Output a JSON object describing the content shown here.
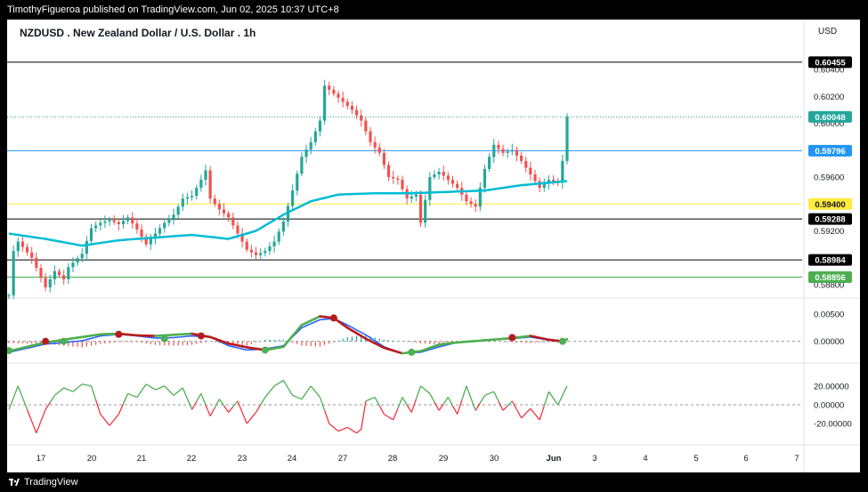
{
  "header": {
    "published": "TimothyFigueroa published on TradingView.com, Jun 02, 2025 10:37 UTC+8"
  },
  "footer": {
    "brand": "TradingView"
  },
  "chart_title": "NZDUSD . New Zealand Dollar / U.S. Dollar . 1h",
  "currency": "USD",
  "colors": {
    "up": "#26a69a",
    "down": "#ef5350",
    "ma": "#00bcd4",
    "macd_fast": "#2962ff",
    "macd_slow_up": "#4caf50",
    "macd_slow_down": "#b71c1c",
    "osc_up": "#4caf50",
    "osc_down": "#f23645",
    "yellow_line": "#ffeb3b"
  },
  "chart_data": [
    {
      "type": "candlestick",
      "title": "NZDUSD . New Zealand Dollar / U.S. Dollar . 1h",
      "x_labels": [
        "17",
        "20",
        "21",
        "22",
        "23",
        "24",
        "27",
        "28",
        "29",
        "30",
        "Jun",
        "3",
        "4",
        "5",
        "6",
        "7"
      ],
      "y_ticks": [
        "0.60400",
        "0.60200",
        "0.60000",
        "0.59600",
        "0.59200",
        "0.58800"
      ],
      "ylim": [
        0.5872,
        0.6056
      ],
      "keypoints": [
        [
          0,
          0.5872
        ],
        [
          1,
          0.5905
        ],
        [
          2,
          0.5912
        ],
        [
          5,
          0.59
        ],
        [
          7,
          0.5885
        ],
        [
          8,
          0.5878
        ],
        [
          10,
          0.589
        ],
        [
          12,
          0.5884
        ],
        [
          13,
          0.5893
        ],
        [
          16,
          0.5903
        ],
        [
          18,
          0.5922
        ],
        [
          20,
          0.5926
        ],
        [
          22,
          0.5928
        ],
        [
          24,
          0.5925
        ],
        [
          26,
          0.593
        ],
        [
          28,
          0.5921
        ],
        [
          30,
          0.591
        ],
        [
          32,
          0.5918
        ],
        [
          34,
          0.5926
        ],
        [
          36,
          0.5932
        ],
        [
          38,
          0.5944
        ],
        [
          40,
          0.5946
        ],
        [
          42,
          0.5958
        ],
        [
          43,
          0.5965
        ],
        [
          44,
          0.5944
        ],
        [
          46,
          0.5936
        ],
        [
          48,
          0.593
        ],
        [
          50,
          0.5918
        ],
        [
          52,
          0.5906
        ],
        [
          54,
          0.5902
        ],
        [
          56,
          0.5905
        ],
        [
          58,
          0.5912
        ],
        [
          60,
          0.5927
        ],
        [
          62,
          0.595
        ],
        [
          64,
          0.5975
        ],
        [
          66,
          0.5986
        ],
        [
          68,
          0.6002
        ],
        [
          69,
          0.6028
        ],
        [
          71,
          0.6022
        ],
        [
          73,
          0.6016
        ],
        [
          75,
          0.601
        ],
        [
          77,
          0.6002
        ],
        [
          79,
          0.5986
        ],
        [
          81,
          0.5978
        ],
        [
          83,
          0.596
        ],
        [
          85,
          0.5958
        ],
        [
          87,
          0.5944
        ],
        [
          89,
          0.5947
        ],
        [
          90,
          0.5926
        ],
        [
          92,
          0.596
        ],
        [
          94,
          0.5964
        ],
        [
          96,
          0.5958
        ],
        [
          98,
          0.5952
        ],
        [
          100,
          0.5942
        ],
        [
          102,
          0.5938
        ],
        [
          104,
          0.5966
        ],
        [
          106,
          0.5984
        ],
        [
          108,
          0.5978
        ],
        [
          110,
          0.598
        ],
        [
          112,
          0.5972
        ],
        [
          114,
          0.5962
        ],
        [
          116,
          0.5952
        ],
        [
          118,
          0.5958
        ],
        [
          120,
          0.5956
        ],
        [
          121,
          0.5972
        ],
        [
          122,
          0.6005
        ]
      ],
      "moving_average": [
        [
          0,
          0.5918
        ],
        [
          8,
          0.5914
        ],
        [
          16,
          0.5909
        ],
        [
          24,
          0.5913
        ],
        [
          32,
          0.5915
        ],
        [
          40,
          0.5917
        ],
        [
          48,
          0.5914
        ],
        [
          54,
          0.592
        ],
        [
          60,
          0.5932
        ],
        [
          66,
          0.5942
        ],
        [
          72,
          0.5947
        ],
        [
          80,
          0.5948
        ],
        [
          88,
          0.5948
        ],
        [
          96,
          0.5949
        ],
        [
          104,
          0.595
        ],
        [
          112,
          0.5954
        ],
        [
          122,
          0.5957
        ]
      ],
      "price_lines": [
        {
          "value": "0.60455",
          "price": 0.60455,
          "style": "solid",
          "color": "#000000"
        },
        {
          "value": "0.60048",
          "price": 0.60048,
          "style": "dotted",
          "color": "#26a69a"
        },
        {
          "value": "0.59796",
          "price": 0.59796,
          "style": "solid",
          "color": "#2196f3"
        },
        {
          "value": "0.59400",
          "price": 0.594,
          "style": "solid",
          "color": "#ffeb3b"
        },
        {
          "value": "0.59288",
          "price": 0.59288,
          "style": "solid",
          "color": "#000000"
        },
        {
          "value": "0.58984",
          "price": 0.58984,
          "style": "solid",
          "color": "#000000"
        },
        {
          "value": "0.58856",
          "price": 0.58856,
          "style": "solid",
          "color": "#4caf50"
        }
      ]
    },
    {
      "type": "line",
      "title": "",
      "y_ticks": [
        "0.00500",
        "0.00000"
      ],
      "ylim": [
        -0.003,
        0.0065
      ],
      "fast": [
        [
          0,
          -0.002
        ],
        [
          8,
          -0.0005
        ],
        [
          12,
          -0.0002
        ],
        [
          16,
          0.0001
        ],
        [
          20,
          0.001
        ],
        [
          24,
          0.0013
        ],
        [
          28,
          0.001
        ],
        [
          32,
          0.0006
        ],
        [
          36,
          0.0007
        ],
        [
          40,
          0.001
        ],
        [
          44,
          0.0008
        ],
        [
          48,
          -0.0008
        ],
        [
          52,
          -0.0016
        ],
        [
          56,
          -0.0014
        ],
        [
          60,
          -0.0008
        ],
        [
          64,
          0.0025
        ],
        [
          68,
          0.004
        ],
        [
          71,
          0.0042
        ],
        [
          74,
          0.003
        ],
        [
          78,
          0.0012
        ],
        [
          82,
          -0.001
        ],
        [
          86,
          -0.0022
        ],
        [
          90,
          -0.002
        ],
        [
          94,
          -0.001
        ],
        [
          98,
          -0.0002
        ],
        [
          104,
          0.0002
        ],
        [
          110,
          0.0005
        ],
        [
          114,
          0.0008
        ],
        [
          118,
          0.0002
        ],
        [
          121,
          -0.0001
        ],
        [
          122,
          0.0003
        ]
      ],
      "slow": [
        [
          0,
          -0.0018
        ],
        [
          8,
          -0.0002
        ],
        [
          12,
          0.0003
        ],
        [
          16,
          0.0008
        ],
        [
          20,
          0.0013
        ],
        [
          24,
          0.0014
        ],
        [
          28,
          0.0011
        ],
        [
          32,
          0.001
        ],
        [
          36,
          0.0012
        ],
        [
          40,
          0.0014
        ],
        [
          44,
          0.0008
        ],
        [
          48,
          -0.0004
        ],
        [
          52,
          -0.0011
        ],
        [
          56,
          -0.0016
        ],
        [
          60,
          -0.001
        ],
        [
          64,
          0.003
        ],
        [
          68,
          0.0046
        ],
        [
          71,
          0.0043
        ],
        [
          74,
          0.0025
        ],
        [
          78,
          0.0005
        ],
        [
          82,
          -0.0012
        ],
        [
          86,
          -0.0022
        ],
        [
          90,
          -0.0018
        ],
        [
          94,
          -0.0006
        ],
        [
          98,
          -0.0002
        ],
        [
          104,
          0.0002
        ],
        [
          110,
          0.0006
        ],
        [
          114,
          0.001
        ],
        [
          118,
          0.0003
        ],
        [
          121,
          0.0
        ],
        [
          122,
          0.0004
        ]
      ],
      "crosses": [
        [
          0,
          -0.0017,
          "up"
        ],
        [
          8,
          0.0,
          "down"
        ],
        [
          12,
          0.0,
          "up"
        ],
        [
          24,
          0.0013,
          "down"
        ],
        [
          34,
          0.0005,
          "up"
        ],
        [
          42,
          0.001,
          "down"
        ],
        [
          56,
          -0.0016,
          "up"
        ],
        [
          71,
          0.0043,
          "down"
        ],
        [
          88,
          -0.002,
          "up"
        ],
        [
          110,
          0.0007,
          "down"
        ],
        [
          121,
          0.0,
          "up"
        ]
      ]
    },
    {
      "type": "line",
      "title": "",
      "y_ticks": [
        "20.00000",
        "0.00000",
        "-20.00000"
      ],
      "ylim": [
        -35,
        35
      ],
      "values": [
        [
          0,
          -5
        ],
        [
          2,
          20
        ],
        [
          4,
          -5
        ],
        [
          6,
          -30
        ],
        [
          8,
          -5
        ],
        [
          10,
          10
        ],
        [
          12,
          18
        ],
        [
          14,
          14
        ],
        [
          16,
          22
        ],
        [
          18,
          20
        ],
        [
          20,
          -10
        ],
        [
          22,
          -22
        ],
        [
          24,
          -10
        ],
        [
          26,
          12
        ],
        [
          28,
          8
        ],
        [
          30,
          22
        ],
        [
          32,
          16
        ],
        [
          34,
          20
        ],
        [
          36,
          10
        ],
        [
          38,
          18
        ],
        [
          40,
          -5
        ],
        [
          42,
          12
        ],
        [
          44,
          -12
        ],
        [
          46,
          6
        ],
        [
          48,
          -8
        ],
        [
          50,
          4
        ],
        [
          52,
          -20
        ],
        [
          54,
          -8
        ],
        [
          56,
          8
        ],
        [
          58,
          20
        ],
        [
          60,
          26
        ],
        [
          62,
          10
        ],
        [
          64,
          6
        ],
        [
          66,
          20
        ],
        [
          68,
          8
        ],
        [
          70,
          -20
        ],
        [
          72,
          -28
        ],
        [
          74,
          -24
        ],
        [
          76,
          -30
        ],
        [
          77,
          -26
        ],
        [
          78,
          4
        ],
        [
          80,
          8
        ],
        [
          82,
          -10
        ],
        [
          84,
          -16
        ],
        [
          86,
          8
        ],
        [
          88,
          -8
        ],
        [
          90,
          20
        ],
        [
          92,
          12
        ],
        [
          94,
          -6
        ],
        [
          96,
          8
        ],
        [
          98,
          -10
        ],
        [
          100,
          20
        ],
        [
          102,
          -6
        ],
        [
          104,
          10
        ],
        [
          106,
          14
        ],
        [
          108,
          -6
        ],
        [
          110,
          4
        ],
        [
          112,
          -14
        ],
        [
          114,
          -4
        ],
        [
          116,
          -16
        ],
        [
          118,
          14
        ],
        [
          120,
          0
        ],
        [
          122,
          20
        ]
      ]
    }
  ]
}
